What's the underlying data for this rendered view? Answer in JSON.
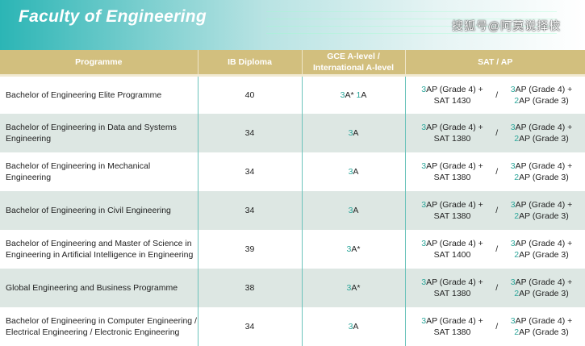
{
  "title": "Faculty of Engineering",
  "headers": [
    "Programme",
    "IB Diploma",
    "GCE A-level /\nInternational A-level",
    "SAT / AP"
  ],
  "rows": [
    {
      "programme": "Bachelor of Engineering Elite Programme",
      "ib": "40",
      "gce": [
        {
          "n": "3",
          "t": "A* "
        },
        {
          "n": "1",
          "t": "A"
        }
      ],
      "sat_left": {
        "n": "3",
        "t": "AP (Grade 4) +",
        "sat": "SAT 1430"
      },
      "sep": "/",
      "sat_right": {
        "n1": "3",
        "t1": "AP (Grade 4) +",
        "n2": "2",
        "t2": "AP (Grade 3)"
      }
    },
    {
      "programme": "Bachelor of Engineering in Data and Systems Engineering",
      "ib": "34",
      "gce": [
        {
          "n": "3",
          "t": "A"
        }
      ],
      "sat_left": {
        "n": "3",
        "t": "AP (Grade 4) +",
        "sat": "SAT 1380"
      },
      "sep": "/",
      "sat_right": {
        "n1": "3",
        "t1": "AP (Grade 4) +",
        "n2": "2",
        "t2": "AP (Grade 3)"
      }
    },
    {
      "programme": "Bachelor of Engineering in Mechanical Engineering",
      "ib": "34",
      "gce": [
        {
          "n": "3",
          "t": "A"
        }
      ],
      "sat_left": {
        "n": "3",
        "t": "AP (Grade 4) +",
        "sat": "SAT 1380"
      },
      "sep": "/",
      "sat_right": {
        "n1": "3",
        "t1": "AP (Grade 4) +",
        "n2": "2",
        "t2": "AP (Grade 3)"
      }
    },
    {
      "programme": "Bachelor of Engineering in Civil Engineering",
      "ib": "34",
      "gce": [
        {
          "n": "3",
          "t": "A"
        }
      ],
      "sat_left": {
        "n": "3",
        "t": "AP (Grade 4) +",
        "sat": "SAT 1380"
      },
      "sep": "/",
      "sat_right": {
        "n1": "3",
        "t1": "AP (Grade 4) +",
        "n2": "2",
        "t2": "AP (Grade 3)"
      }
    },
    {
      "programme": "Bachelor of Engineering and Master of Science in Engineering in Artificial Intelligence in Engineering",
      "ib": "39",
      "gce": [
        {
          "n": "3",
          "t": "A*"
        }
      ],
      "sat_left": {
        "n": "3",
        "t": "AP (Grade 4) +",
        "sat": "SAT 1400"
      },
      "sep": "/",
      "sat_right": {
        "n1": "3",
        "t1": "AP (Grade 4) +",
        "n2": "2",
        "t2": "AP (Grade 3)"
      }
    },
    {
      "programme": "Global Engineering and Business Programme",
      "ib": "38",
      "gce": [
        {
          "n": "3",
          "t": "A*"
        }
      ],
      "sat_left": {
        "n": "3",
        "t": "AP (Grade 4) +",
        "sat": "SAT 1380"
      },
      "sep": "/",
      "sat_right": {
        "n1": "3",
        "t1": "AP (Grade 4) +",
        "n2": "2",
        "t2": "AP (Grade 3)"
      }
    },
    {
      "programme": "Bachelor of Engineering in Computer Engineering / Electrical Engineering / Electronic Engineering",
      "ib": "34",
      "gce": [
        {
          "n": "3",
          "t": "A"
        }
      ],
      "sat_left": {
        "n": "3",
        "t": "AP (Grade 4) +",
        "sat": "SAT 1380"
      },
      "sep": "/",
      "sat_right": {
        "n1": "3",
        "t1": "AP (Grade 4) +",
        "n2": "2",
        "t2": "AP (Grade 3)"
      }
    }
  ],
  "watermark": "搜狐号@阿莫说择校",
  "colors": {
    "header": "#d2bf7e",
    "highlight": "#2ba69a",
    "alt_row": "#dde7e3"
  }
}
